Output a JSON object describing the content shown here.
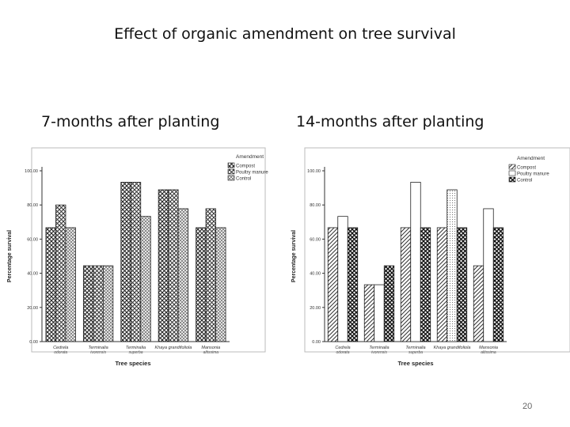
{
  "slide": {
    "title": "Effect of organic amendment on tree survival",
    "page_number": "20"
  },
  "chart_data": [
    {
      "type": "bar",
      "title": "7-months after planting",
      "xlabel": "Tree species",
      "ylabel": "Percentage survival",
      "ylim": [
        0,
        100
      ],
      "yticks": [
        "0.00",
        "20.00",
        "40.00",
        "60.00",
        "80.00",
        "100.00"
      ],
      "categories": [
        [
          "Cedrela",
          "odorata"
        ],
        [
          "Terminalia",
          "ivorensis"
        ],
        [
          "Terminalia",
          "superba"
        ],
        [
          "Khaya grandifoliola",
          ""
        ],
        [
          "Mansonia",
          "altissima"
        ]
      ],
      "legend_title": "Amendment",
      "legend_position": "top-right",
      "grid": false,
      "series": [
        {
          "name": "Compost",
          "values": [
            66.7,
            44.4,
            93.3,
            88.9,
            66.7
          ]
        },
        {
          "name": "Poultry manure",
          "values": [
            80.0,
            44.4,
            93.3,
            88.9,
            77.8
          ]
        },
        {
          "name": "Control",
          "values": [
            66.7,
            44.4,
            73.3,
            77.8,
            66.7
          ]
        }
      ]
    },
    {
      "type": "bar",
      "title": "14-months after planting",
      "xlabel": "Tree species",
      "ylabel": "Percentage survival",
      "ylim": [
        0,
        100
      ],
      "yticks": [
        "0.00",
        "20.00",
        "40.00",
        "60.00",
        "80.00",
        "100.00"
      ],
      "categories": [
        [
          "Cedrela",
          "odorata"
        ],
        [
          "Terminalia",
          "ivorensis"
        ],
        [
          "Terminalia",
          "superba"
        ],
        [
          "Khaya grandifoliola",
          ""
        ],
        [
          "Mansonia",
          "altissima"
        ]
      ],
      "legend_title": "Amendment",
      "legend_position": "top-right",
      "grid": false,
      "series": [
        {
          "name": "Compost",
          "values": [
            66.7,
            33.3,
            66.7,
            66.7,
            44.4
          ]
        },
        {
          "name": "Poultry manure",
          "values": [
            73.3,
            33.3,
            93.3,
            88.9,
            77.8
          ]
        },
        {
          "name": "Control",
          "values": [
            66.7,
            44.4,
            66.7,
            66.7,
            66.7
          ]
        }
      ]
    }
  ]
}
